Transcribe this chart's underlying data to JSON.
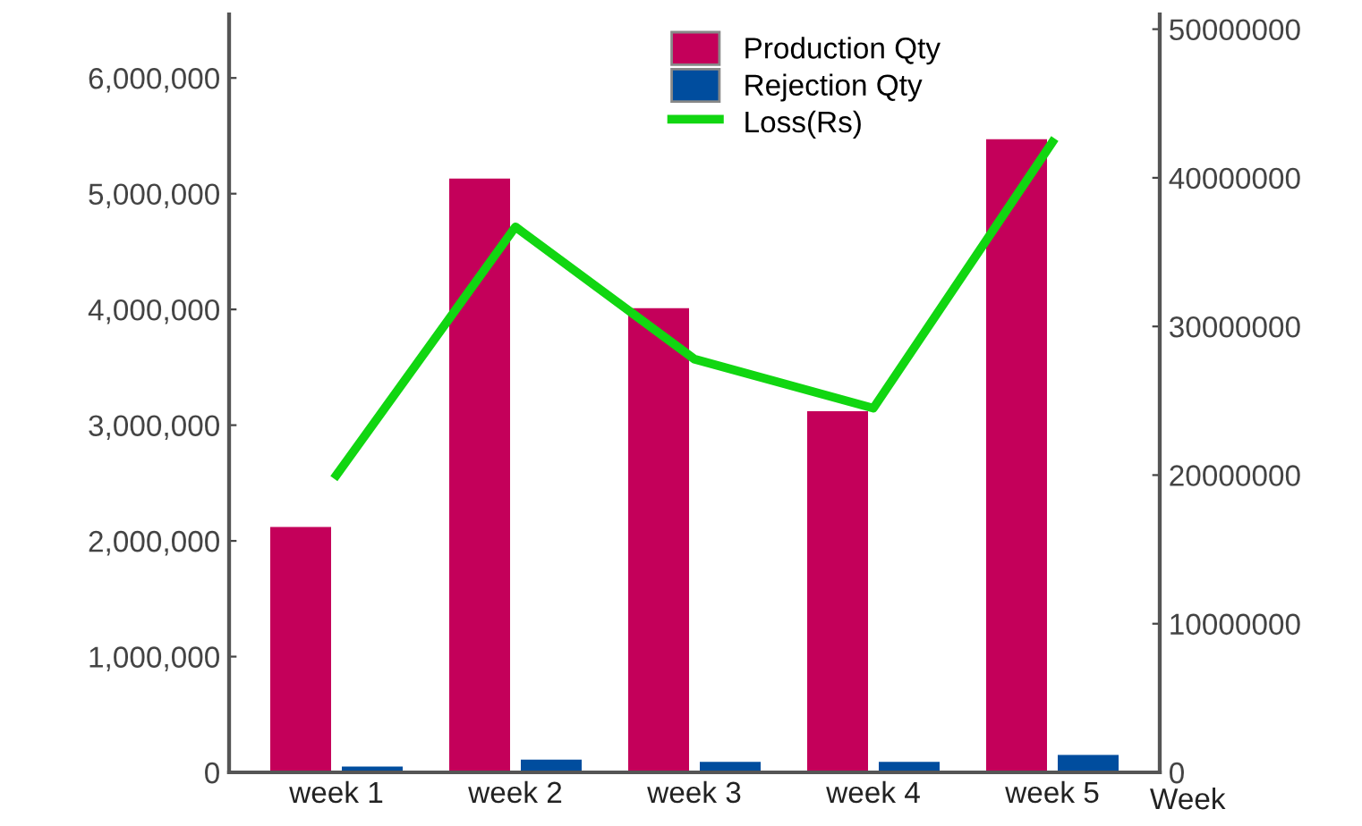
{
  "chart_data": {
    "type": "bar",
    "categories": [
      "week 1",
      "week 2",
      "week 3",
      "week 4",
      "week 5"
    ],
    "xlabel": "Week",
    "series": [
      {
        "name": "Production Qty",
        "color": "#c4005a",
        "values": [
          2120000,
          5130000,
          4010000,
          3120000,
          5470000
        ]
      },
      {
        "name": "Rejection Qty",
        "color": "#004d9e",
        "values": [
          50000,
          110000,
          90000,
          90000,
          150000
        ]
      },
      {
        "name": "Loss(Rs)",
        "type": "line",
        "axis": "y2",
        "color": "#11d611",
        "values": [
          20000000,
          36700000,
          27800000,
          24500000,
          42400000
        ]
      }
    ],
    "ylim": [
      0,
      6550000
    ],
    "yticks": [
      {
        "value": 0,
        "label": "0"
      },
      {
        "value": 1000000,
        "label": "1,000,000"
      },
      {
        "value": 2000000,
        "label": "2,000,000"
      },
      {
        "value": 3000000,
        "label": "3,000,000"
      },
      {
        "value": 4000000,
        "label": "4,000,000"
      },
      {
        "value": 5000000,
        "label": "5,000,000"
      },
      {
        "value": 6000000,
        "label": "6,000,000"
      }
    ],
    "y2lim": [
      0,
      51000000
    ],
    "y2ticks": [
      0,
      10000000,
      20000000,
      30000000,
      40000000,
      50000000
    ],
    "legend": "top",
    "grid": false,
    "marker": "none"
  }
}
